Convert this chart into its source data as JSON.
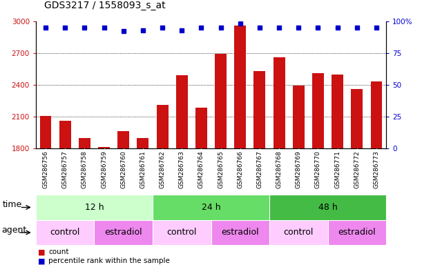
{
  "title": "GDS3217 / 1558093_s_at",
  "samples": [
    "GSM286756",
    "GSM286757",
    "GSM286758",
    "GSM286759",
    "GSM286760",
    "GSM286761",
    "GSM286762",
    "GSM286763",
    "GSM286764",
    "GSM286765",
    "GSM286766",
    "GSM286767",
    "GSM286768",
    "GSM286769",
    "GSM286770",
    "GSM286771",
    "GSM286772",
    "GSM286773"
  ],
  "counts": [
    2105,
    2060,
    1900,
    1815,
    1960,
    1895,
    2210,
    2490,
    2185,
    2690,
    2960,
    2530,
    2660,
    2395,
    2510,
    2500,
    2360,
    2430
  ],
  "percentiles": [
    95,
    95,
    95,
    95,
    92,
    93,
    95,
    93,
    95,
    95,
    98,
    95,
    95,
    95,
    95,
    95,
    95,
    95
  ],
  "bar_color": "#cc1111",
  "dot_color": "#0000cc",
  "ylim_left": [
    1800,
    3000
  ],
  "ylim_right": [
    0,
    100
  ],
  "yticks_left": [
    1800,
    2100,
    2400,
    2700,
    3000
  ],
  "yticks_right": [
    0,
    25,
    50,
    75,
    100
  ],
  "time_groups": [
    {
      "label": "12 h",
      "start": 0,
      "end": 6,
      "color": "#ccffcc"
    },
    {
      "label": "24 h",
      "start": 6,
      "end": 12,
      "color": "#66dd66"
    },
    {
      "label": "48 h",
      "start": 12,
      "end": 18,
      "color": "#44bb44"
    }
  ],
  "agent_groups": [
    {
      "label": "control",
      "start": 0,
      "end": 3,
      "color": "#ffccff"
    },
    {
      "label": "estradiol",
      "start": 3,
      "end": 6,
      "color": "#ee88ee"
    },
    {
      "label": "control",
      "start": 6,
      "end": 9,
      "color": "#ffccff"
    },
    {
      "label": "estradiol",
      "start": 9,
      "end": 12,
      "color": "#ee88ee"
    },
    {
      "label": "control",
      "start": 12,
      "end": 15,
      "color": "#ffccff"
    },
    {
      "label": "estradiol",
      "start": 15,
      "end": 18,
      "color": "#ee88ee"
    }
  ],
  "ylabel_left_color": "#cc1111",
  "ylabel_right_color": "#0000cc",
  "tick_row_bg": "#dddddd",
  "title_fontsize": 10,
  "tick_fontsize": 7.5,
  "label_fontsize": 9,
  "annotation_fontsize": 9
}
